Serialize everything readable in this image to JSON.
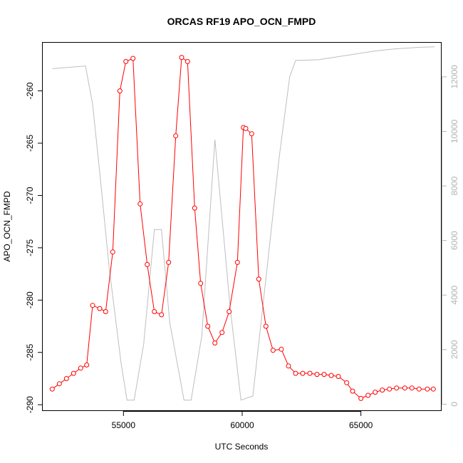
{
  "chart_data": {
    "type": "line",
    "title": "ORCAS RF19 APO_OCN_FMPD",
    "xlabel": "UTC Seconds",
    "ylabel": "APO_OCN_FMPD",
    "xlim": [
      51600,
      68400
    ],
    "ylim": [
      -290.6,
      -255.4
    ],
    "y2lim": [
      -250,
      13250
    ],
    "x_ticks": [
      55000,
      60000,
      65000
    ],
    "y_ticks": [
      -290,
      -285,
      -280,
      -275,
      -270,
      -265,
      -260
    ],
    "y2_ticks": [
      0,
      2000,
      4000,
      6000,
      8000,
      10000,
      12000
    ],
    "grid": false,
    "series": [
      {
        "role": "primary",
        "color": "#ff0000",
        "marker": "open-circle",
        "x": [
          52000,
          52300,
          52600,
          52900,
          53200,
          53450,
          53700,
          54000,
          54250,
          54550,
          54850,
          55100,
          55400,
          55700,
          56000,
          56300,
          56600,
          56900,
          57200,
          57450,
          57700,
          58000,
          58250,
          58550,
          58850,
          59150,
          59450,
          59800,
          60050,
          60150,
          60400,
          60700,
          61000,
          61300,
          61650,
          61950,
          62250,
          62550,
          62850,
          63150,
          63450,
          63750,
          64050,
          64400,
          64650,
          65000,
          65300,
          65600,
          65900,
          66200,
          66500,
          66850,
          67150,
          67450,
          67800,
          68050
        ],
        "y": [
          -288.5,
          -288.0,
          -287.5,
          -287.0,
          -286.5,
          -286.2,
          -280.5,
          -280.8,
          -281.1,
          -275.4,
          -260.0,
          -257.2,
          -256.9,
          -270.8,
          -276.6,
          -281.1,
          -281.4,
          -276.4,
          -264.3,
          -256.8,
          -257.2,
          -271.2,
          -278.4,
          -282.5,
          -284.1,
          -283.1,
          -281.1,
          -276.4,
          -263.5,
          -263.6,
          -264.1,
          -278.0,
          -282.5,
          -284.8,
          -284.7,
          -286.3,
          -287.0,
          -287.0,
          -287.0,
          -287.1,
          -287.1,
          -287.2,
          -287.3,
          -287.9,
          -288.7,
          -289.4,
          -289.1,
          -288.8,
          -288.6,
          -288.5,
          -288.4,
          -288.4,
          -288.4,
          -288.5,
          -288.5,
          -288.5
        ]
      },
      {
        "role": "secondary",
        "color": "#bebebe",
        "marker": "none",
        "x": [
          52000,
          53400,
          53700,
          54000,
          54400,
          54900,
          55150,
          55450,
          55850,
          56300,
          56600,
          56950,
          57550,
          57850,
          58300,
          58850,
          59500,
          59950,
          60450,
          61050,
          61550,
          62000,
          62250,
          63200,
          64500,
          65600,
          66400,
          67400,
          68100
        ],
        "y": [
          12300,
          12400,
          11000,
          8500,
          5000,
          1500,
          150,
          150,
          2200,
          6400,
          6400,
          3000,
          150,
          150,
          2500,
          9700,
          3500,
          150,
          300,
          5000,
          9000,
          12000,
          12600,
          12625,
          12800,
          12950,
          13020,
          13080,
          13100
        ]
      }
    ]
  }
}
